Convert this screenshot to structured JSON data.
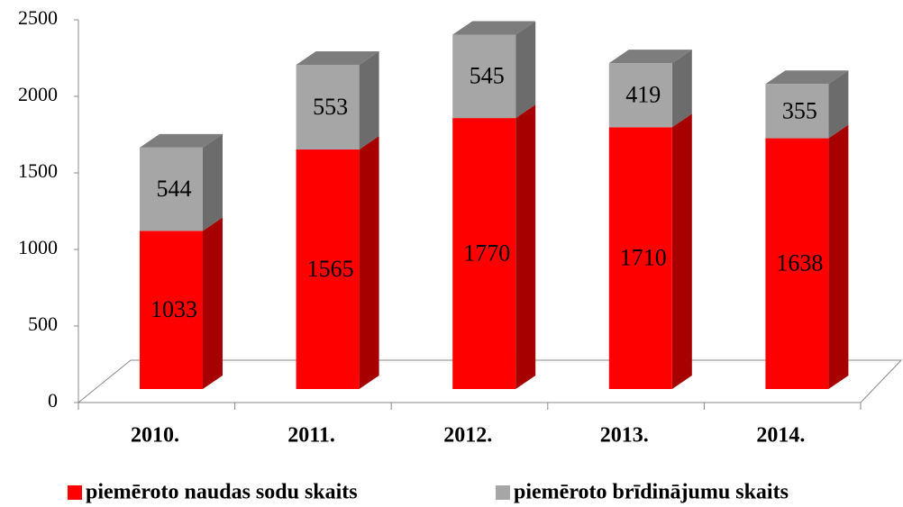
{
  "chart_data": {
    "type": "bar3d_stacked",
    "categories": [
      "2010.",
      "2011.",
      "2012.",
      "2013.",
      "2014."
    ],
    "series": [
      {
        "name": "piemēroto naudas sodu skaits",
        "color": "#ff0000",
        "values": [
          1033,
          1565,
          1770,
          1710,
          1638
        ]
      },
      {
        "name": "piemēroto brīdinājumu skaits",
        "color": "#a6a6a6",
        "values": [
          544,
          553,
          545,
          419,
          355
        ]
      }
    ],
    "ylim": [
      0,
      2500
    ],
    "yticks": [
      0,
      500,
      1000,
      1500,
      2000,
      2500
    ],
    "legend": "bottom"
  }
}
